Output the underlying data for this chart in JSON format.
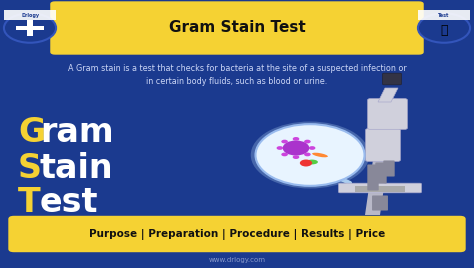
{
  "bg_color": "#1b3a8f",
  "title": "Gram Stain Test",
  "title_bg": "#f5d233",
  "title_color": "#111111",
  "description_line1": "A Gram stain is a test that checks for bacteria at the site of a suspected infection or",
  "description_line2": "in certain body fluids, such as blood or urine.",
  "desc_color": "#ccd6f6",
  "main_words": [
    [
      "G",
      "ram"
    ],
    [
      "S",
      "tain"
    ],
    [
      "T",
      "est"
    ]
  ],
  "letter_color": "#f5d233",
  "word_color": "#ffffff",
  "bottom_text": "Purpose | Preparation | Procedure | Results | Price",
  "bottom_bg": "#f5d233",
  "bottom_text_color": "#111111",
  "footer_text": "www.drlogy.com",
  "footer_color": "#8899cc",
  "drlogy_label": "Drlogy",
  "test_label": "Test",
  "icon_bg": "#1b3a8f",
  "icon_ring": "#3355bb",
  "mic_body": "#d0d0dc",
  "mic_arm": "#b8b8c8",
  "mic_dark": "#555566",
  "mic_base": "#6a6a7a",
  "lens_bg": "#e8f4ff",
  "lens_edge": "#99bbee"
}
